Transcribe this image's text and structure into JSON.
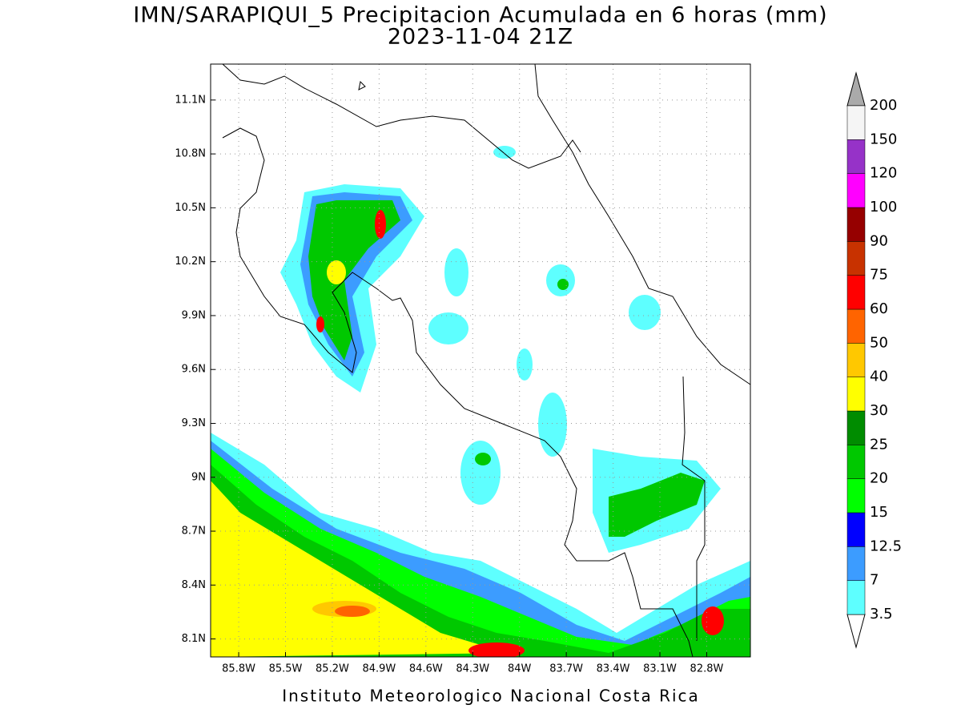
{
  "header": {
    "title": "IMN/SARAPIQUI_5 Precipitacion Acumulada en 6 horas (mm)",
    "subtitle": "2023-11-04 21Z"
  },
  "map": {
    "lonlim": [
      -85.98,
      -82.52
    ],
    "latlim": [
      8.0,
      11.3
    ],
    "lon_ticks": [
      {
        "value": -85.8,
        "label": "85.8W"
      },
      {
        "value": -85.5,
        "label": "85.5W"
      },
      {
        "value": -85.2,
        "label": "85.2W"
      },
      {
        "value": -84.9,
        "label": "84.9W"
      },
      {
        "value": -84.6,
        "label": "84.6W"
      },
      {
        "value": -84.3,
        "label": "84.3W"
      },
      {
        "value": -84,
        "label": "84W"
      },
      {
        "value": -83.7,
        "label": "83.7W"
      },
      {
        "value": -83.4,
        "label": "83.4W"
      },
      {
        "value": -83.1,
        "label": "83.1W"
      },
      {
        "value": -82.8,
        "label": "82.8W"
      }
    ],
    "lat_ticks": [
      {
        "value": 8.1,
        "label": "8.1N"
      },
      {
        "value": 8.4,
        "label": "8.4N"
      },
      {
        "value": 8.7,
        "label": "8.7N"
      },
      {
        "value": 9,
        "label": "9N"
      },
      {
        "value": 9.3,
        "label": "9.3N"
      },
      {
        "value": 9.6,
        "label": "9.6N"
      },
      {
        "value": 9.9,
        "label": "9.9N"
      },
      {
        "value": 10.2,
        "label": "10.2N"
      },
      {
        "value": 10.5,
        "label": "10.5N"
      },
      {
        "value": 10.8,
        "label": "10.8N"
      },
      {
        "value": 11.1,
        "label": "11.1N"
      }
    ]
  },
  "colorbar": {
    "levels": [
      3.5,
      7,
      12.5,
      15,
      20,
      25,
      30,
      40,
      50,
      60,
      75,
      90,
      100,
      120,
      150,
      200
    ],
    "colors": [
      "#5effff",
      "#3c9cff",
      "#0000ff",
      "#00ff00",
      "#00c800",
      "#008c00",
      "#ffff00",
      "#ffc800",
      "#ff6400",
      "#ff0000",
      "#c83200",
      "#960000",
      "#ff00ff",
      "#9632c8",
      "#f5f5f5"
    ],
    "below_color": "#ffffff",
    "above_color": "#aaaaaa"
  },
  "footer": "Instituto Meteorologico Nacional Costa Rica"
}
